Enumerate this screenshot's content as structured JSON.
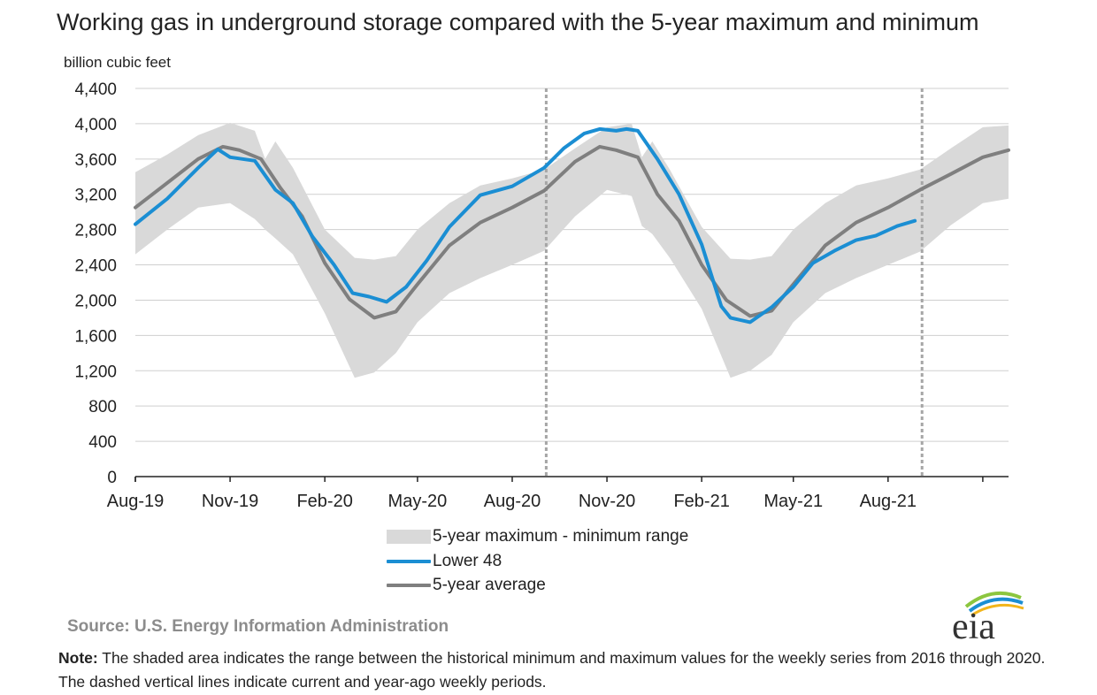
{
  "chart_data": {
    "type": "line",
    "title": "Working gas in underground  storage compared with the 5-year maximum  and minimum",
    "ylabel": "billion cubic feet",
    "xlabel": "",
    "x_tick_labels": [
      "Aug-19",
      "Nov-19",
      "Feb-20",
      "May-20",
      "Aug-20",
      "Nov-20",
      "Feb-21",
      "May-21",
      "Aug-21"
    ],
    "y_tick_labels": [
      "0",
      "400",
      "800",
      "1,200",
      "1,600",
      "2,000",
      "2,400",
      "2,800",
      "3,200",
      "3,600",
      "4,000",
      "4,400"
    ],
    "ylim": [
      0,
      4400
    ],
    "xlim": [
      "2019-08-01",
      "2021-11-26"
    ],
    "grid": "horizontal",
    "reference_lines": [
      "2020-09-03",
      "2021-09-03"
    ],
    "legend_position": "bottom",
    "band": {
      "name": "5-year maximum - minimum range",
      "color": "#d9d9d9",
      "x": [
        "2019-08-01",
        "2019-09-01",
        "2019-10-01",
        "2019-11-01",
        "2019-11-25",
        "2019-12-05",
        "2019-12-15",
        "2020-01-01",
        "2020-02-01",
        "2020-03-01",
        "2020-03-20",
        "2020-04-10",
        "2020-05-01",
        "2020-06-01",
        "2020-07-01",
        "2020-08-01",
        "2020-09-01",
        "2020-10-01",
        "2020-11-01",
        "2020-11-25",
        "2020-12-05",
        "2020-12-15",
        "2021-01-01",
        "2021-02-01",
        "2021-03-01",
        "2021-03-20",
        "2021-04-10",
        "2021-05-01",
        "2021-06-01",
        "2021-07-01",
        "2021-08-01",
        "2021-09-01",
        "2021-10-01",
        "2021-11-01",
        "2021-11-26"
      ],
      "max": [
        3450,
        3650,
        3870,
        4010,
        3920,
        3600,
        3800,
        3500,
        2800,
        2480,
        2460,
        2500,
        2800,
        3100,
        3300,
        3380,
        3480,
        3720,
        3960,
        4000,
        3620,
        3800,
        3480,
        2830,
        2470,
        2460,
        2500,
        2800,
        3100,
        3300,
        3380,
        3480,
        3720,
        3960,
        3980
      ],
      "min": [
        2520,
        2800,
        3050,
        3100,
        2920,
        2800,
        2700,
        2520,
        1850,
        1120,
        1180,
        1400,
        1750,
        2080,
        2250,
        2400,
        2560,
        2950,
        3250,
        3180,
        2840,
        2750,
        2480,
        1900,
        1120,
        1200,
        1380,
        1750,
        2080,
        2250,
        2400,
        2550,
        2850,
        3100,
        3150
      ]
    },
    "series": [
      {
        "name": "Lower 48",
        "color": "#1b8ed3",
        "x": [
          "2019-08-01",
          "2019-09-01",
          "2019-10-01",
          "2019-10-20",
          "2019-11-01",
          "2019-11-25",
          "2019-12-15",
          "2020-01-01",
          "2020-01-20",
          "2020-02-10",
          "2020-02-28",
          "2020-03-15",
          "2020-04-01",
          "2020-04-20",
          "2020-05-10",
          "2020-06-01",
          "2020-07-01",
          "2020-08-01",
          "2020-09-01",
          "2020-09-20",
          "2020-10-10",
          "2020-10-25",
          "2020-11-10",
          "2020-11-20",
          "2020-12-01",
          "2020-12-20",
          "2021-01-10",
          "2021-02-01",
          "2021-02-20",
          "2021-03-01",
          "2021-03-20",
          "2021-04-10",
          "2021-05-01",
          "2021-05-20",
          "2021-06-10",
          "2021-07-01",
          "2021-07-20",
          "2021-08-10",
          "2021-08-27"
        ],
        "values": [
          2860,
          3150,
          3500,
          3710,
          3620,
          3580,
          3250,
          3100,
          2720,
          2400,
          2080,
          2040,
          1980,
          2150,
          2450,
          2830,
          3190,
          3290,
          3500,
          3720,
          3890,
          3940,
          3920,
          3940,
          3920,
          3600,
          3200,
          2630,
          1930,
          1800,
          1750,
          1920,
          2150,
          2420,
          2560,
          2680,
          2730,
          2840,
          2900
        ]
      },
      {
        "name": "5-year average",
        "color": "#7f7f7f",
        "x": [
          "2019-08-01",
          "2019-09-01",
          "2019-10-01",
          "2019-10-25",
          "2019-11-10",
          "2019-12-01",
          "2019-12-20",
          "2020-01-10",
          "2020-02-01",
          "2020-02-25",
          "2020-03-20",
          "2020-04-10",
          "2020-05-01",
          "2020-06-01",
          "2020-07-01",
          "2020-08-01",
          "2020-09-01",
          "2020-10-01",
          "2020-10-25",
          "2020-11-10",
          "2020-12-01",
          "2020-12-20",
          "2021-01-10",
          "2021-02-01",
          "2021-02-25",
          "2021-03-20",
          "2021-04-10",
          "2021-05-01",
          "2021-06-01",
          "2021-07-01",
          "2021-08-01",
          "2021-09-01",
          "2021-10-01",
          "2021-11-01",
          "2021-11-26"
        ],
        "values": [
          3050,
          3330,
          3600,
          3740,
          3700,
          3600,
          3270,
          2950,
          2420,
          2010,
          1800,
          1870,
          2180,
          2620,
          2880,
          3050,
          3240,
          3570,
          3740,
          3700,
          3620,
          3200,
          2900,
          2400,
          2000,
          1820,
          1880,
          2180,
          2620,
          2880,
          3050,
          3250,
          3430,
          3620,
          3700
        ]
      }
    ]
  },
  "source_text": "Source:  U.S. Energy Information Administration",
  "note": {
    "label": "Note:",
    "text": " The shaded area indicates the range between the historical minimum and maximum values for the weekly series from 2016 through 2020. The dashed vertical lines indicate current and year-ago weekly periods."
  },
  "logo": {
    "text": "eia",
    "colors": [
      "#1b8ed3",
      "#8cc63f",
      "#f2b51b"
    ]
  }
}
